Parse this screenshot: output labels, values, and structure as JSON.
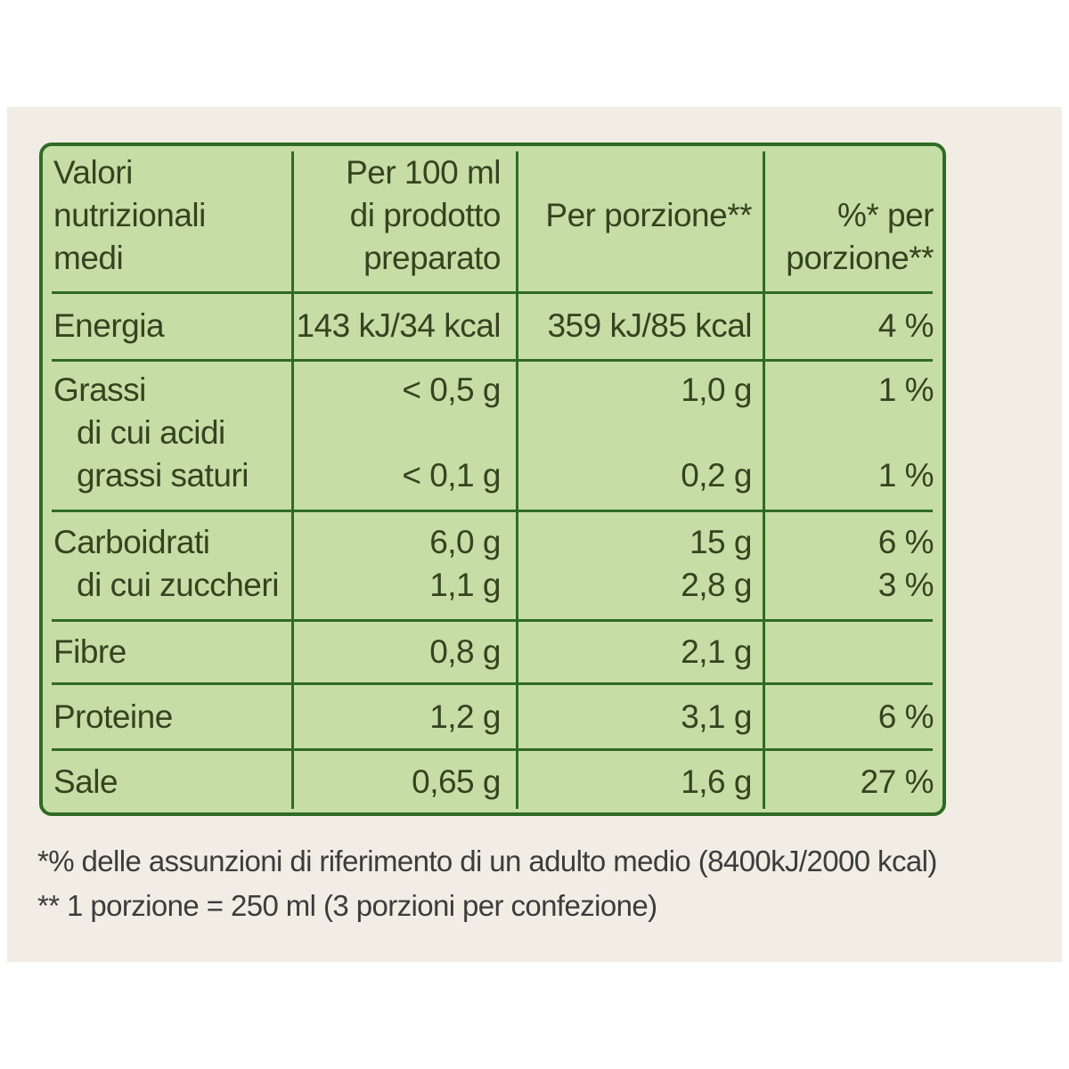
{
  "table": {
    "header": {
      "col1": [
        "Valori",
        "nutrizionali",
        "medi"
      ],
      "col2": [
        "Per 100 ml",
        "di prodotto",
        "preparato"
      ],
      "col3": "Per porzione**",
      "col4": [
        "%* per",
        "porzione**"
      ]
    },
    "rows": {
      "energia": {
        "label": "Energia",
        "per100": "143 kJ/34 kcal",
        "porzione": "359 kJ/85 kcal",
        "pct": "4 %"
      },
      "grassi": {
        "label": "Grassi",
        "sub_label_1": "di cui acidi",
        "sub_label_2": "grassi saturi",
        "per100": "< 0,5 g",
        "porzione": "1,0 g",
        "pct": "1 %",
        "sat_per100": "< 0,1 g",
        "sat_porzione": "0,2 g",
        "sat_pct": "1 %"
      },
      "carboidrati": {
        "label": "Carboidrati",
        "sub_label": "di cui zuccheri",
        "per100": "6,0 g",
        "porzione": "15 g",
        "pct": "6 %",
        "zuc_per100": "1,1 g",
        "zuc_porzione": "2,8 g",
        "zuc_pct": "3 %"
      },
      "fibre": {
        "label": "Fibre",
        "per100": "0,8 g",
        "porzione": "2,1 g",
        "pct": ""
      },
      "proteine": {
        "label": "Proteine",
        "per100": "1,2 g",
        "porzione": "3,1 g",
        "pct": "6 %"
      },
      "sale": {
        "label": "Sale",
        "per100": "0,65 g",
        "porzione": "1,6 g",
        "pct": "27 %"
      }
    }
  },
  "footnotes": {
    "line1": "*% delle assunzioni di riferimento di un adulto medio (8400kJ/2000 kcal)",
    "line2": "** 1 porzione = 250 ml (3 porzioni per confezione)"
  },
  "colors": {
    "border": "#2f6b24",
    "table_fill": "#c7dda6",
    "background": "#f1ede5",
    "text": "#35431f"
  }
}
